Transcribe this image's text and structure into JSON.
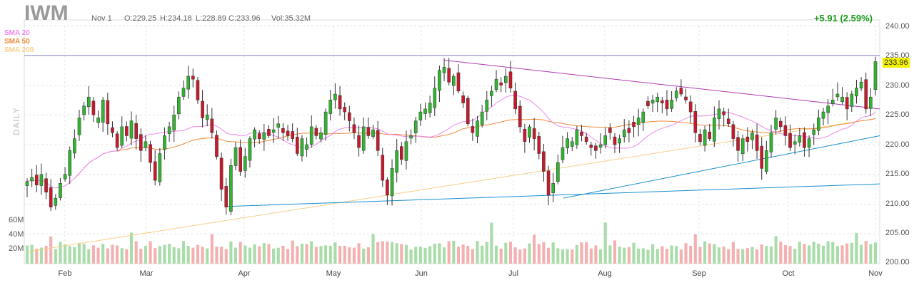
{
  "header": {
    "ticker": "IWM",
    "date": "Nov 1",
    "open": "O:229.25",
    "high": "H:234.18",
    "low": "L:228.89",
    "close": "C:233.96",
    "volume": "Vol:35.32M",
    "change": "+5.91 (2.59%)"
  },
  "legend": [
    {
      "label": "SMA 20",
      "color": "#ee88ee"
    },
    {
      "label": "SMA 50",
      "color": "#f08a3c"
    },
    {
      "label": "SMA 200",
      "color": "#f5d08a"
    }
  ],
  "side_label": "DAILY",
  "last_price": "233.96",
  "volume_labels": [
    "60M",
    "40M",
    "20M"
  ],
  "colors": {
    "up": "#2fb52f",
    "down": "#c8192c",
    "vol_up": "#a8dca8",
    "vol_down": "#f4b0b0",
    "trendline_blue": "#1a8fd0",
    "trendline_magenta": "#b03ab0",
    "resistance": "#8888cc"
  },
  "chart_data": {
    "type": "candlestick",
    "title": "IWM",
    "y_axis": {
      "ticks": [
        "240.00",
        "235.00",
        "230.00",
        "225.00",
        "220.00",
        "215.00",
        "210.00",
        "205.00",
        "200.00"
      ],
      "range": [
        200,
        240
      ],
      "position": "right"
    },
    "x_axis": {
      "ticks": [
        "Feb",
        "Mar",
        "Apr",
        "May",
        "Jun",
        "Jul",
        "Aug",
        "Sep",
        "Oct",
        "Nov"
      ]
    },
    "grid": true,
    "last_close": 233.96,
    "resistance_level": 235.0,
    "closes_approx": [
      213.8,
      214.5,
      213.2,
      215.0,
      212.0,
      209.5,
      211.0,
      213.5,
      215.0,
      219.0,
      221.0,
      224.5,
      226.5,
      228.0,
      225.0,
      224.5,
      227.5,
      223.5,
      222.0,
      219.5,
      223.0,
      221.5,
      224.0,
      221.0,
      219.0,
      220.5,
      217.0,
      214.0,
      218.5,
      221.5,
      223.0,
      225.0,
      228.0,
      229.5,
      231.5,
      231.0,
      227.5,
      224.5,
      225.0,
      222.0,
      218.0,
      212.5,
      209.5,
      216.5,
      219.5,
      215.5,
      218.0,
      221.0,
      222.5,
      221.0,
      222.0,
      221.5,
      222.5,
      223.5,
      222.0,
      221.5,
      221.0,
      218.5,
      221.0,
      220.0,
      223.0,
      221.5,
      222.0,
      225.5,
      227.5,
      228.5,
      226.0,
      225.5,
      224.0,
      222.0,
      219.5,
      223.0,
      221.5,
      222.5,
      219.0,
      214.0,
      211.5,
      216.0,
      219.0,
      217.5,
      220.5,
      221.5,
      224.0,
      225.5,
      226.0,
      227.0,
      229.5,
      232.5,
      233.0,
      230.5,
      231.5,
      229.0,
      227.0,
      223.5,
      222.0,
      224.0,
      225.5,
      227.5,
      229.0,
      231.0,
      230.0,
      231.5,
      229.5,
      226.0,
      223.0,
      220.5,
      223.0,
      221.0,
      218.5,
      215.5,
      211.5,
      213.5,
      217.0,
      219.5,
      221.0,
      220.5,
      222.5,
      221.5,
      220.5,
      219.5,
      219.0,
      220.0,
      221.5,
      222.0,
      220.0,
      221.0,
      222.5,
      222.0,
      223.0,
      224.5,
      225.5,
      226.5,
      227.5,
      228.0,
      227.0,
      226.0,
      227.5,
      229.0,
      228.5,
      227.5,
      225.5,
      222.0,
      220.5,
      222.5,
      221.0,
      224.5,
      226.0,
      225.0,
      223.5,
      221.0,
      219.0,
      221.0,
      220.5,
      222.0,
      219.0,
      216.0,
      219.0,
      222.0,
      224.5,
      223.0,
      221.5,
      219.5,
      220.5,
      221.5,
      219.5,
      221.0,
      222.5,
      224.5,
      225.5,
      226.5,
      227.5,
      228.5,
      228.0,
      226.0,
      228.5,
      229.5,
      230.5,
      226.0,
      228.0,
      233.96
    ],
    "volume_range_M": [
      0,
      70
    ]
  }
}
